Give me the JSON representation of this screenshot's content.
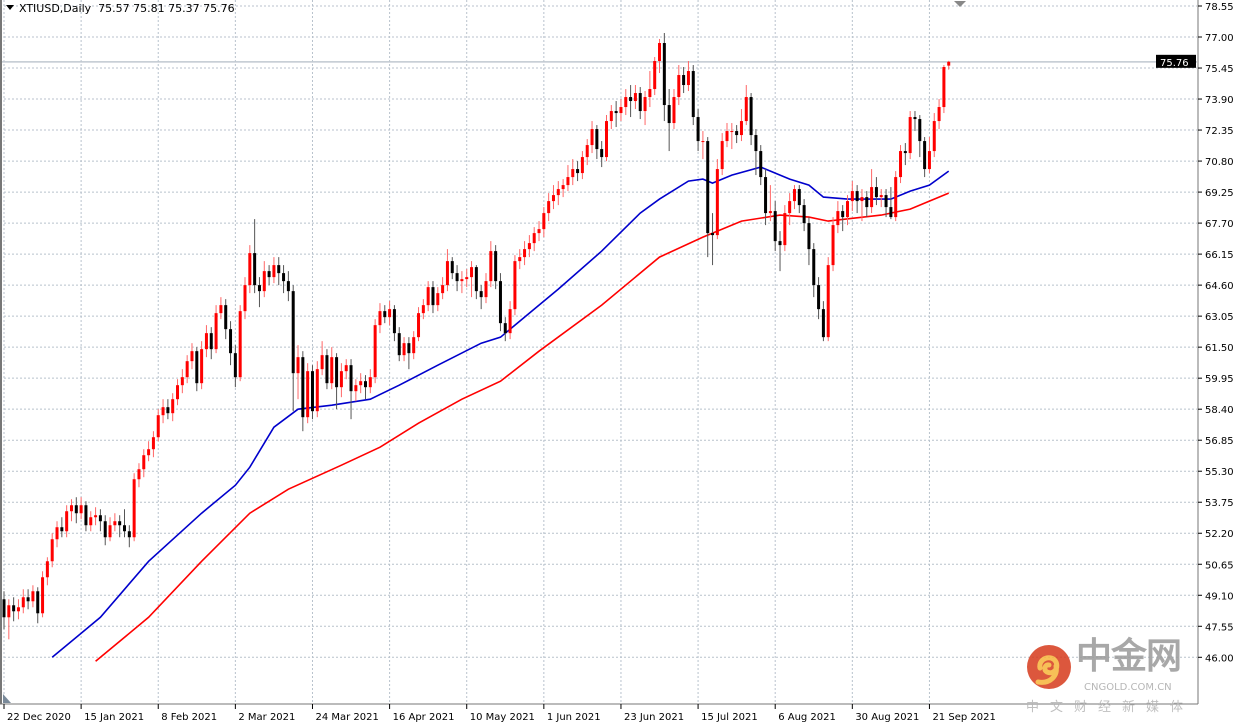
{
  "header": {
    "symbol": "XTIUSD,Daily",
    "open": "75.57",
    "high": "75.81",
    "low": "75.37",
    "close": "75.76"
  },
  "colors": {
    "bull": "#ff0000",
    "bear": "#000000",
    "ma_fast": "#0000cc",
    "ma_slow": "#ff0000",
    "grid": "#b8c2cc",
    "price_line": "#c0c8d0"
  },
  "watermark": {
    "logo_text": "中金网",
    "domain": "CNGOLD.COM.CN",
    "tagline": "中文财经新媒体"
  },
  "chart_data": {
    "type": "candlestick",
    "title": "XTIUSD,Daily",
    "ylim": [
      46.0,
      78.55
    ],
    "grid": true,
    "y_ticks": [
      "78.55",
      "77.00",
      "75.45",
      "73.90",
      "72.35",
      "70.80",
      "69.25",
      "67.70",
      "66.15",
      "64.60",
      "63.05",
      "61.50",
      "59.95",
      "58.40",
      "56.85",
      "55.30",
      "53.75",
      "52.20",
      "50.65",
      "49.10",
      "47.55",
      "46.00"
    ],
    "x_ticks": [
      {
        "bar": 0,
        "label": "22 Dec 2020"
      },
      {
        "bar": 16,
        "label": "15 Jan 2021"
      },
      {
        "bar": 32,
        "label": "8 Feb 2021"
      },
      {
        "bar": 48,
        "label": "2 Mar 2021"
      },
      {
        "bar": 64,
        "label": "24 Mar 2021"
      },
      {
        "bar": 80,
        "label": "16 Apr 2021"
      },
      {
        "bar": 96,
        "label": "10 May 2021"
      },
      {
        "bar": 112,
        "label": "1 Jun 2021"
      },
      {
        "bar": 128,
        "label": "23 Jun 2021"
      },
      {
        "bar": 144,
        "label": "15 Jul 2021"
      },
      {
        "bar": 160,
        "label": "6 Aug 2021"
      },
      {
        "bar": 176,
        "label": "30 Aug 2021"
      },
      {
        "bar": 192,
        "label": "21 Sep 2021"
      }
    ],
    "current_price": "75.76",
    "candles_ohlc": [
      [
        48.9,
        49.3,
        47.4,
        48.0
      ],
      [
        48.0,
        48.9,
        46.9,
        48.6
      ],
      [
        48.6,
        49.0,
        47.8,
        48.3
      ],
      [
        48.3,
        48.9,
        47.9,
        48.5
      ],
      [
        48.5,
        49.4,
        48.2,
        49.0
      ],
      [
        49.0,
        49.4,
        48.4,
        48.8
      ],
      [
        48.8,
        49.6,
        48.5,
        49.3
      ],
      [
        49.3,
        49.5,
        47.7,
        48.2
      ],
      [
        48.2,
        50.3,
        48.0,
        50.0
      ],
      [
        50.0,
        51.0,
        49.6,
        50.8
      ],
      [
        50.8,
        52.2,
        50.5,
        51.9
      ],
      [
        51.9,
        52.8,
        51.5,
        52.5
      ],
      [
        52.5,
        53.0,
        52.0,
        52.3
      ],
      [
        52.3,
        53.6,
        52.0,
        53.3
      ],
      [
        53.3,
        53.9,
        52.8,
        53.6
      ],
      [
        53.6,
        54.0,
        52.7,
        53.2
      ],
      [
        53.2,
        54.0,
        52.9,
        53.6
      ],
      [
        53.6,
        53.8,
        52.3,
        52.6
      ],
      [
        52.6,
        53.3,
        52.3,
        53.0
      ],
      [
        53.0,
        53.5,
        52.6,
        53.1
      ],
      [
        53.1,
        53.4,
        52.3,
        52.8
      ],
      [
        52.8,
        53.1,
        51.6,
        52.0
      ],
      [
        52.0,
        53.0,
        51.8,
        52.6
      ],
      [
        52.6,
        53.2,
        52.3,
        52.8
      ],
      [
        52.8,
        53.1,
        52.0,
        52.6
      ],
      [
        52.6,
        53.4,
        52.0,
        52.3
      ],
      [
        52.3,
        52.6,
        51.5,
        52.0
      ],
      [
        52.0,
        55.2,
        51.8,
        54.9
      ],
      [
        54.9,
        55.7,
        54.5,
        55.4
      ],
      [
        55.4,
        56.4,
        55.0,
        56.1
      ],
      [
        56.1,
        56.8,
        55.8,
        56.4
      ],
      [
        56.4,
        57.3,
        56.0,
        57.0
      ],
      [
        57.0,
        58.4,
        56.8,
        58.1
      ],
      [
        58.1,
        58.9,
        57.7,
        58.5
      ],
      [
        58.5,
        58.9,
        57.9,
        58.2
      ],
      [
        58.2,
        59.2,
        57.8,
        58.9
      ],
      [
        58.9,
        59.9,
        58.6,
        59.6
      ],
      [
        59.6,
        60.4,
        59.2,
        60.0
      ],
      [
        60.0,
        61.1,
        59.7,
        60.8
      ],
      [
        60.8,
        61.7,
        60.4,
        61.3
      ],
      [
        61.3,
        61.5,
        59.3,
        59.7
      ],
      [
        59.7,
        61.8,
        59.4,
        61.4
      ],
      [
        61.4,
        62.6,
        61.0,
        62.2
      ],
      [
        62.2,
        62.5,
        60.9,
        61.4
      ],
      [
        61.4,
        63.6,
        61.2,
        63.2
      ],
      [
        63.2,
        64.0,
        62.9,
        63.6
      ],
      [
        63.6,
        63.9,
        61.9,
        62.4
      ],
      [
        62.4,
        62.8,
        60.6,
        61.2
      ],
      [
        61.2,
        61.6,
        59.5,
        60.0
      ],
      [
        60.0,
        63.6,
        59.8,
        63.3
      ],
      [
        63.3,
        65.0,
        62.9,
        64.6
      ],
      [
        64.6,
        66.6,
        64.2,
        66.2
      ],
      [
        66.2,
        67.9,
        64.2,
        64.6
      ],
      [
        64.6,
        65.0,
        63.5,
        64.3
      ],
      [
        64.3,
        65.8,
        64.0,
        65.3
      ],
      [
        65.3,
        65.6,
        64.6,
        65.0
      ],
      [
        65.0,
        66.0,
        64.7,
        65.6
      ],
      [
        65.6,
        66.0,
        64.6,
        65.2
      ],
      [
        65.2,
        65.6,
        64.2,
        64.8
      ],
      [
        64.8,
        65.3,
        63.8,
        64.3
      ],
      [
        64.3,
        64.6,
        58.3,
        60.2
      ],
      [
        60.2,
        61.6,
        58.9,
        61.0
      ],
      [
        61.0,
        61.3,
        57.3,
        58.0
      ],
      [
        58.0,
        60.7,
        57.7,
        60.3
      ],
      [
        60.3,
        60.6,
        57.9,
        58.3
      ],
      [
        58.3,
        60.8,
        58.0,
        60.4
      ],
      [
        60.4,
        61.8,
        60.1,
        61.1
      ],
      [
        61.1,
        61.4,
        59.4,
        59.7
      ],
      [
        59.7,
        61.5,
        59.4,
        61.0
      ],
      [
        61.0,
        61.2,
        58.4,
        59.5
      ],
      [
        59.5,
        60.7,
        59.0,
        60.3
      ],
      [
        60.3,
        60.9,
        59.9,
        60.6
      ],
      [
        60.6,
        60.9,
        57.9,
        59.3
      ],
      [
        59.3,
        59.9,
        58.8,
        59.6
      ],
      [
        59.6,
        60.2,
        59.2,
        59.8
      ],
      [
        59.8,
        60.1,
        58.9,
        59.5
      ],
      [
        59.5,
        60.4,
        59.2,
        60.0
      ],
      [
        60.0,
        62.9,
        59.7,
        62.6
      ],
      [
        62.6,
        63.7,
        62.2,
        63.3
      ],
      [
        63.3,
        63.6,
        62.7,
        63.0
      ],
      [
        63.0,
        63.8,
        62.6,
        63.4
      ],
      [
        63.4,
        63.6,
        61.8,
        62.2
      ],
      [
        62.2,
        62.5,
        60.8,
        61.1
      ],
      [
        61.1,
        62.0,
        60.8,
        61.7
      ],
      [
        61.7,
        62.0,
        60.4,
        61.2
      ],
      [
        61.2,
        62.3,
        60.9,
        62.0
      ],
      [
        62.0,
        63.5,
        61.8,
        63.2
      ],
      [
        63.2,
        63.9,
        62.9,
        63.6
      ],
      [
        63.6,
        64.8,
        63.3,
        64.5
      ],
      [
        64.5,
        64.8,
        63.2,
        63.6
      ],
      [
        63.6,
        64.5,
        63.3,
        64.2
      ],
      [
        64.2,
        65.0,
        63.9,
        64.6
      ],
      [
        64.6,
        66.4,
        64.3,
        65.8
      ],
      [
        65.8,
        66.0,
        64.9,
        65.2
      ],
      [
        65.2,
        65.6,
        64.3,
        64.8
      ],
      [
        64.8,
        65.3,
        64.2,
        64.9
      ],
      [
        64.9,
        65.4,
        64.5,
        65.0
      ],
      [
        65.0,
        65.8,
        64.0,
        65.5
      ],
      [
        65.5,
        65.6,
        63.9,
        64.3
      ],
      [
        64.3,
        64.6,
        63.4,
        64.0
      ],
      [
        64.0,
        65.2,
        63.7,
        64.8
      ],
      [
        64.8,
        66.8,
        64.5,
        66.3
      ],
      [
        66.3,
        66.6,
        64.4,
        64.8
      ],
      [
        64.8,
        65.2,
        62.3,
        62.7
      ],
      [
        62.7,
        63.0,
        61.8,
        62.2
      ],
      [
        62.2,
        63.8,
        61.9,
        63.4
      ],
      [
        63.4,
        66.1,
        63.1,
        65.8
      ],
      [
        65.8,
        66.4,
        65.4,
        66.0
      ],
      [
        66.0,
        66.8,
        65.6,
        66.4
      ],
      [
        66.4,
        67.1,
        66.0,
        66.7
      ],
      [
        66.7,
        67.5,
        66.3,
        67.2
      ],
      [
        67.2,
        67.8,
        66.8,
        67.4
      ],
      [
        67.4,
        68.5,
        67.0,
        68.2
      ],
      [
        68.2,
        69.2,
        67.8,
        68.8
      ],
      [
        68.8,
        69.6,
        68.4,
        69.1
      ],
      [
        69.1,
        69.8,
        68.6,
        69.4
      ],
      [
        69.4,
        69.9,
        69.0,
        69.6
      ],
      [
        69.6,
        70.6,
        69.3,
        70.0
      ],
      [
        70.0,
        70.9,
        69.6,
        70.4
      ],
      [
        70.4,
        70.8,
        69.8,
        70.2
      ],
      [
        70.2,
        71.3,
        69.9,
        71.0
      ],
      [
        71.0,
        71.9,
        70.6,
        71.6
      ],
      [
        71.6,
        72.8,
        71.2,
        72.4
      ],
      [
        72.4,
        72.6,
        70.9,
        71.4
      ],
      [
        71.4,
        71.8,
        70.5,
        71.0
      ],
      [
        71.0,
        73.1,
        70.8,
        72.8
      ],
      [
        72.8,
        73.6,
        72.4,
        73.3
      ],
      [
        73.3,
        73.8,
        72.5,
        73.2
      ],
      [
        73.2,
        73.9,
        72.8,
        73.5
      ],
      [
        73.5,
        74.4,
        73.1,
        74.0
      ],
      [
        74.0,
        74.6,
        73.0,
        73.8
      ],
      [
        73.8,
        74.6,
        73.4,
        74.2
      ],
      [
        74.2,
        74.5,
        72.9,
        73.3
      ],
      [
        73.3,
        74.3,
        72.6,
        74.0
      ],
      [
        74.0,
        75.3,
        73.5,
        74.4
      ],
      [
        74.4,
        76.0,
        74.1,
        75.8
      ],
      [
        75.8,
        76.9,
        75.2,
        76.7
      ],
      [
        76.7,
        77.2,
        72.8,
        73.6
      ],
      [
        73.6,
        74.4,
        71.3,
        72.7
      ],
      [
        72.7,
        74.4,
        72.4,
        74.0
      ],
      [
        74.0,
        75.6,
        73.6,
        75.1
      ],
      [
        75.1,
        75.5,
        74.2,
        74.6
      ],
      [
        74.6,
        75.8,
        74.3,
        75.3
      ],
      [
        75.3,
        75.6,
        72.6,
        73.0
      ],
      [
        73.0,
        73.4,
        71.3,
        71.8
      ],
      [
        71.8,
        72.3,
        70.9,
        71.8
      ],
      [
        71.8,
        72.0,
        66.0,
        67.2
      ],
      [
        67.2,
        68.2,
        65.6,
        67.1
      ],
      [
        67.1,
        70.9,
        66.9,
        70.4
      ],
      [
        70.4,
        72.2,
        70.1,
        71.8
      ],
      [
        71.8,
        72.7,
        71.5,
        72.3
      ],
      [
        72.3,
        72.7,
        71.4,
        72.3
      ],
      [
        72.3,
        72.6,
        71.7,
        72.1
      ],
      [
        72.1,
        73.4,
        71.8,
        72.8
      ],
      [
        72.8,
        74.6,
        72.6,
        74.0
      ],
      [
        74.0,
        74.2,
        71.6,
        72.1
      ],
      [
        72.1,
        72.4,
        70.1,
        71.3
      ],
      [
        71.3,
        71.6,
        69.6,
        70.0
      ],
      [
        70.0,
        70.4,
        67.6,
        68.2
      ],
      [
        68.2,
        69.6,
        67.8,
        68.3
      ],
      [
        68.3,
        68.8,
        66.3,
        66.8
      ],
      [
        66.8,
        67.3,
        65.3,
        66.6
      ],
      [
        66.6,
        68.6,
        66.3,
        68.2
      ],
      [
        68.2,
        69.2,
        67.6,
        68.8
      ],
      [
        68.8,
        69.6,
        68.4,
        69.4
      ],
      [
        69.4,
        69.6,
        68.2,
        68.6
      ],
      [
        68.6,
        68.9,
        67.3,
        67.7
      ],
      [
        67.7,
        68.0,
        65.6,
        66.4
      ],
      [
        66.4,
        66.7,
        64.0,
        64.6
      ],
      [
        64.6,
        65.0,
        62.9,
        63.4
      ],
      [
        63.4,
        63.8,
        61.8,
        62.0
      ],
      [
        62.0,
        66.0,
        61.8,
        65.6
      ],
      [
        65.6,
        68.0,
        65.3,
        67.6
      ],
      [
        67.6,
        68.8,
        67.2,
        68.3
      ],
      [
        68.3,
        68.6,
        67.3,
        68.0
      ],
      [
        68.0,
        69.1,
        67.6,
        68.8
      ],
      [
        68.8,
        69.8,
        68.3,
        69.3
      ],
      [
        69.3,
        69.6,
        68.2,
        68.8
      ],
      [
        68.8,
        69.4,
        67.8,
        69.0
      ],
      [
        69.0,
        69.3,
        68.0,
        68.5
      ],
      [
        68.5,
        70.4,
        68.2,
        69.5
      ],
      [
        69.5,
        70.0,
        68.6,
        69.0
      ],
      [
        69.0,
        69.4,
        68.5,
        69.1
      ],
      [
        69.1,
        69.4,
        68.0,
        68.5
      ],
      [
        68.5,
        69.5,
        67.9,
        68.0
      ],
      [
        68.0,
        70.3,
        67.8,
        70.0
      ],
      [
        70.0,
        71.6,
        69.7,
        71.3
      ],
      [
        71.3,
        71.7,
        70.6,
        71.2
      ],
      [
        71.2,
        73.3,
        70.9,
        73.0
      ],
      [
        73.0,
        73.3,
        72.3,
        72.9
      ],
      [
        72.9,
        73.1,
        71.0,
        71.8
      ],
      [
        71.8,
        72.0,
        70.0,
        70.4
      ],
      [
        70.4,
        72.0,
        70.2,
        71.3
      ],
      [
        71.3,
        73.2,
        71.0,
        72.8
      ],
      [
        72.8,
        73.9,
        72.4,
        73.5
      ],
      [
        73.5,
        75.6,
        73.2,
        75.5
      ],
      [
        75.57,
        75.81,
        75.37,
        75.76
      ]
    ],
    "ma_fast": [
      [
        10,
        46.0
      ],
      [
        20,
        48.0
      ],
      [
        30,
        50.8
      ],
      [
        41,
        53.2
      ],
      [
        48,
        54.6
      ],
      [
        51,
        55.5
      ],
      [
        56,
        57.5
      ],
      [
        61,
        58.4
      ],
      [
        68,
        58.6
      ],
      [
        76,
        58.9
      ],
      [
        82,
        59.6
      ],
      [
        90,
        60.6
      ],
      [
        99,
        61.7
      ],
      [
        103,
        62.0
      ],
      [
        109,
        63.2
      ],
      [
        115,
        64.4
      ],
      [
        124,
        66.3
      ],
      [
        132,
        68.2
      ],
      [
        136,
        68.9
      ],
      [
        142,
        69.8
      ],
      [
        145,
        69.9
      ],
      [
        147,
        69.7
      ],
      [
        151,
        70.1
      ],
      [
        157,
        70.5
      ],
      [
        163,
        69.9
      ],
      [
        167,
        69.6
      ],
      [
        170,
        69.0
      ],
      [
        175,
        68.9
      ],
      [
        184,
        68.9
      ],
      [
        188,
        69.3
      ],
      [
        192,
        69.6
      ],
      [
        196,
        70.3
      ]
    ],
    "ma_slow": [
      [
        19,
        45.8
      ],
      [
        30,
        48.0
      ],
      [
        41,
        50.8
      ],
      [
        51,
        53.2
      ],
      [
        59,
        54.4
      ],
      [
        70,
        55.6
      ],
      [
        78,
        56.5
      ],
      [
        86,
        57.7
      ],
      [
        95,
        58.9
      ],
      [
        103,
        59.8
      ],
      [
        111,
        61.3
      ],
      [
        124,
        63.6
      ],
      [
        136,
        66.0
      ],
      [
        145,
        67.0
      ],
      [
        153,
        67.8
      ],
      [
        161,
        68.1
      ],
      [
        167,
        68.0
      ],
      [
        171,
        67.8
      ],
      [
        182,
        68.1
      ],
      [
        188,
        68.4
      ],
      [
        192,
        68.8
      ],
      [
        196,
        69.2
      ]
    ]
  }
}
